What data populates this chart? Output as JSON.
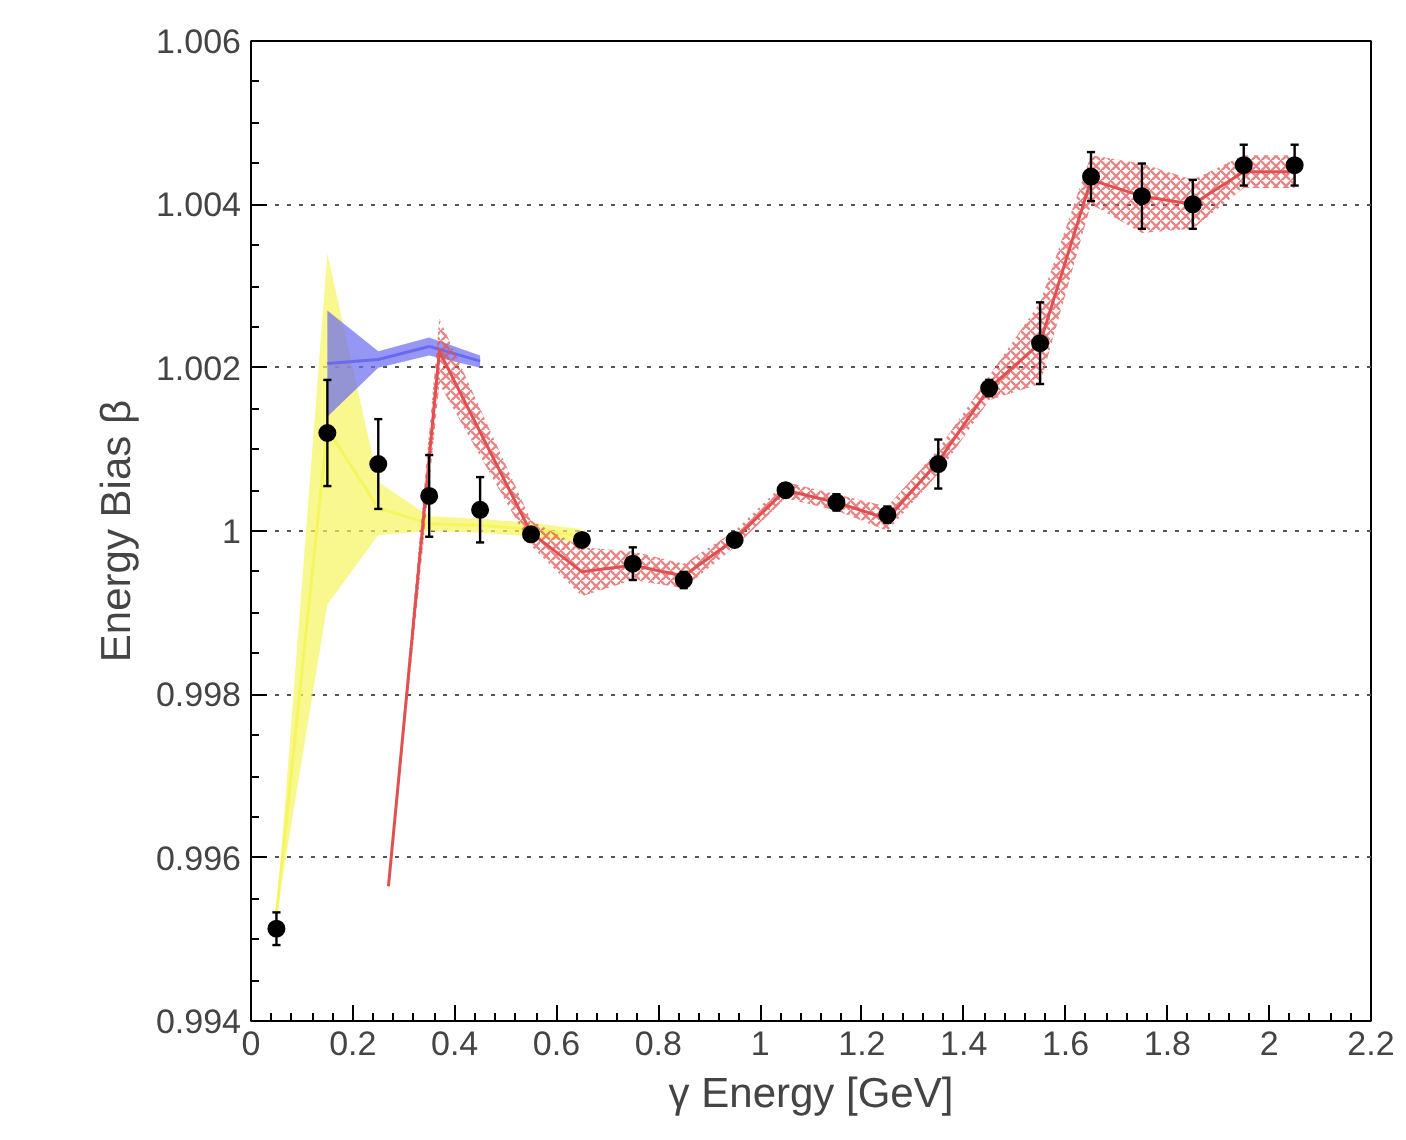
{
  "chart_data": {
    "type": "scatter",
    "xlabel": "γ Energy [GeV]",
    "ylabel": "Energy Bias β",
    "xlim": [
      0,
      2.2
    ],
    "ylim": [
      0.994,
      1.006
    ],
    "xticks": [
      0,
      0.2,
      0.4,
      0.6,
      0.8,
      1,
      1.2,
      1.4,
      1.6,
      1.8,
      2,
      2.2
    ],
    "yticks": [
      0.994,
      0.996,
      0.998,
      1,
      1.002,
      1.004,
      1.006
    ],
    "grid": "y",
    "series": [
      {
        "type": "line",
        "color": "#f5f560",
        "x": [
          0.05,
          0.15,
          0.25,
          0.35,
          0.45,
          0.55,
          0.65
        ],
        "lower": [
          0.9953,
          0.9991,
          0.99995,
          1.0,
          0.99998,
          0.99993,
          0.99985
        ],
        "values": [
          0.9953,
          1.00125,
          1.00028,
          1.00009,
          1.00007,
          1.00002,
          0.99994
        ],
        "upper": [
          0.9953,
          1.0034,
          1.0006,
          1.00018,
          1.00015,
          1.0001,
          1.00002
        ]
      },
      {
        "type": "line",
        "color": "#6a6af0",
        "x": [
          0.15,
          0.25,
          0.35,
          0.45
        ],
        "lower": [
          1.0014,
          1.002,
          1.00215,
          1.002
        ],
        "values": [
          1.00205,
          1.0021,
          1.00226,
          1.00208
        ],
        "upper": [
          1.0027,
          1.0022,
          1.00237,
          1.00215
        ]
      },
      {
        "type": "line",
        "color": "#e05050",
        "x": [
          0.27,
          0.37,
          0.55,
          0.65,
          0.75,
          0.85,
          0.95,
          1.05,
          1.15,
          1.25,
          1.35,
          1.45,
          1.55,
          1.65,
          1.75,
          1.85,
          1.95,
          2.05
        ],
        "lower": [
          0.9956,
          1.0018,
          0.99982,
          0.9992,
          0.9994,
          0.9993,
          0.9998,
          1.0004,
          1.00025,
          1.0,
          1.0007,
          1.0016,
          1.0018,
          1.004,
          1.00365,
          1.0037,
          1.0042,
          1.0042
        ],
        "values": [
          0.99565,
          1.0022,
          0.99998,
          0.9995,
          0.99958,
          0.99945,
          0.9999,
          1.0005,
          1.00035,
          1.00015,
          1.00085,
          1.00175,
          1.0023,
          1.0043,
          1.0041,
          1.004,
          1.0044,
          1.0044
        ],
        "upper": [
          0.9957,
          1.0026,
          1.00013,
          0.9998,
          0.99975,
          0.9996,
          1.0,
          1.0006,
          1.00045,
          1.0003,
          1.001,
          1.0019,
          1.0028,
          1.0046,
          1.0045,
          1.0043,
          1.0046,
          1.0046
        ]
      },
      {
        "color": "#000000",
        "marker": "circle",
        "x": [
          0.05,
          0.15,
          0.25,
          0.35,
          0.45,
          0.55,
          0.65,
          0.75,
          0.85,
          0.95,
          1.05,
          1.15,
          1.25,
          1.35,
          1.45,
          1.55,
          1.65,
          1.75,
          1.85,
          1.95,
          2.05
        ],
        "values": [
          0.99513,
          1.0012,
          1.00082,
          1.00043,
          1.00026,
          0.99996,
          0.99989,
          0.9996,
          0.9994,
          0.99989,
          1.0005,
          1.00035,
          1.0002,
          1.00082,
          1.00175,
          1.0023,
          1.00434,
          1.0041,
          1.004,
          1.00448,
          1.00448
        ],
        "errors": [
          0.0002,
          0.00065,
          0.00055,
          0.0005,
          0.0004,
          5e-05,
          5e-05,
          0.0002,
          0.0001,
          5e-05,
          8e-05,
          0.0001,
          0.0001,
          0.0003,
          0.0001,
          0.0005,
          0.0003,
          0.0004,
          0.0003,
          0.00025,
          0.00025
        ]
      }
    ]
  }
}
